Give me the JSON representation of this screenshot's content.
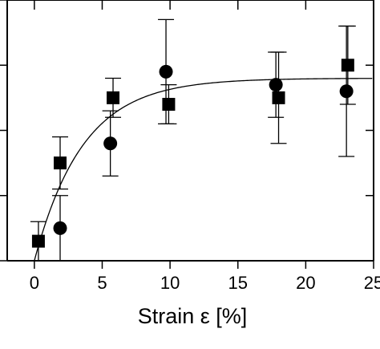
{
  "chart_data": {
    "type": "scatter",
    "title": "",
    "xlabel": "Strain ε [%]",
    "ylabel": "",
    "xlim": [
      -2,
      25
    ],
    "ylim": [
      0,
      4
    ],
    "x_ticks": [
      0,
      5,
      10,
      15,
      20,
      25
    ],
    "x_tick_labels": [
      "0",
      "5",
      "10",
      "15",
      "20",
      "25"
    ],
    "y_ticks": [
      0,
      1,
      2,
      3,
      4
    ],
    "y_tick_labels": [],
    "grid": false,
    "colors": {
      "marker": "#000000",
      "line": "#000000",
      "axis": "#000000"
    },
    "series": [
      {
        "marker": "square",
        "points": [
          {
            "x": 0.3,
            "y": 0.3,
            "err": 0.3
          },
          {
            "x": 1.9,
            "y": 1.5,
            "err": 0.4
          },
          {
            "x": 5.8,
            "y": 2.5,
            "err": 0.3
          },
          {
            "x": 9.9,
            "y": 2.4,
            "err": 0.3
          },
          {
            "x": 18.0,
            "y": 2.5,
            "err": 0.7
          },
          {
            "x": 23.1,
            "y": 3.0,
            "err": 0.6
          }
        ]
      },
      {
        "marker": "circle",
        "points": [
          {
            "x": 1.9,
            "y": 0.5,
            "err": 0.5
          },
          {
            "x": 5.6,
            "y": 1.8,
            "err": 0.5
          },
          {
            "x": 9.7,
            "y": 2.9,
            "err": 0.8
          },
          {
            "x": 17.8,
            "y": 2.7,
            "err": 0.5
          },
          {
            "x": 23.0,
            "y": 2.6,
            "err": 1.0
          }
        ]
      }
    ],
    "fit_curve": {
      "type": "exponential-saturation",
      "asymptote": 2.8,
      "rate": 0.28,
      "x0": 0.0
    }
  }
}
